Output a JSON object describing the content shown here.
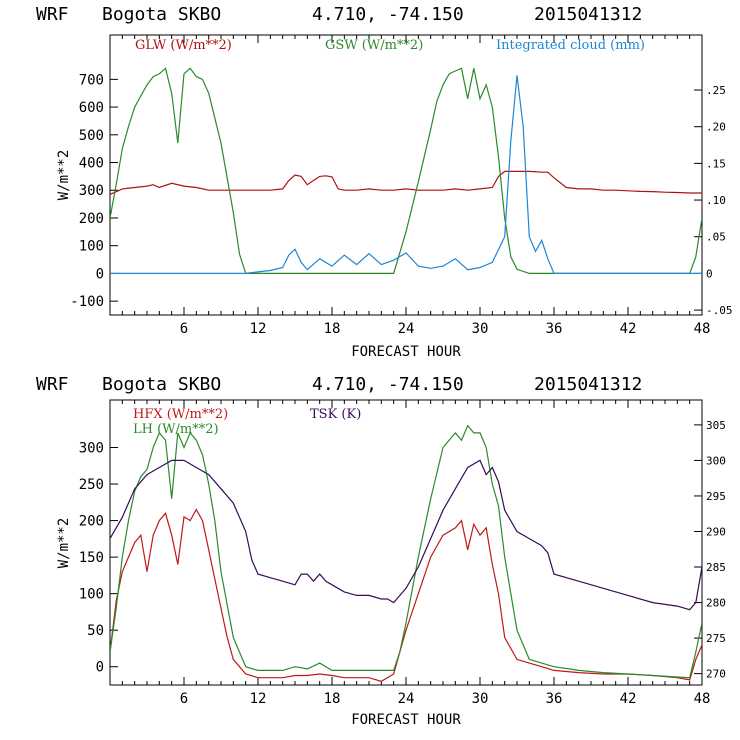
{
  "chart_data": [
    {
      "type": "line",
      "header": {
        "model": "WRF",
        "station": "Bogota SKBO",
        "coords": "4.710, -74.150",
        "run": "2015041312"
      },
      "xlabel": "FORECAST HOUR",
      "ylabel": "W/m**2",
      "xlim": [
        0,
        48
      ],
      "ylim": [
        -150,
        860
      ],
      "y2lim": [
        -0.0567,
        0.325
      ],
      "xticks": [
        6,
        12,
        18,
        24,
        30,
        36,
        42,
        48
      ],
      "yticks": [
        -100,
        0,
        100,
        200,
        300,
        400,
        500,
        600,
        700
      ],
      "ytick_labels": [
        "-100",
        "0",
        "100",
        "200",
        "300",
        "400",
        "500",
        "600",
        "700"
      ],
      "y2ticks": [
        -0.05,
        0,
        0.05,
        0.1,
        0.15,
        0.2,
        0.25
      ],
      "y2tick_labels": [
        "-.05",
        "0",
        ".05",
        ".10",
        ".15",
        ".20",
        ".25"
      ],
      "series": [
        {
          "name": "GLW (W/m**2)",
          "color": "#b01010",
          "axis": "left",
          "x": [
            0,
            1,
            2,
            3,
            3.5,
            4,
            5,
            6,
            7,
            8,
            9,
            10,
            11,
            12,
            13,
            14,
            14.5,
            15,
            15.5,
            16,
            16.5,
            17,
            17.5,
            18,
            18.5,
            19,
            20,
            21,
            22,
            23,
            24,
            25,
            26,
            27,
            28,
            29,
            30,
            31,
            31.5,
            32,
            33,
            34,
            35,
            35.5,
            36,
            37,
            38,
            39,
            40,
            41,
            42,
            43,
            44,
            45,
            46,
            47,
            48
          ],
          "values": [
            285,
            305,
            310,
            315,
            320,
            310,
            325,
            315,
            310,
            300,
            300,
            300,
            300,
            300,
            300,
            305,
            335,
            355,
            350,
            320,
            335,
            350,
            352,
            348,
            305,
            300,
            300,
            305,
            300,
            300,
            305,
            300,
            300,
            300,
            305,
            300,
            305,
            310,
            350,
            368,
            368,
            368,
            365,
            365,
            345,
            310,
            305,
            305,
            300,
            300,
            298,
            296,
            295,
            293,
            292,
            290,
            290
          ]
        },
        {
          "name": "GSW (W/m**2)",
          "color": "#2a8a2a",
          "axis": "left",
          "x": [
            0,
            0.5,
            1,
            1.5,
            2,
            2.5,
            3,
            3.5,
            4,
            4.5,
            5,
            5.5,
            6,
            6.5,
            7,
            7.5,
            8,
            9,
            10,
            10.5,
            11,
            12,
            23,
            24,
            25,
            26,
            26.5,
            27,
            27.5,
            28,
            28.5,
            29,
            29.5,
            30,
            30.5,
            31,
            31.5,
            32,
            32.5,
            33,
            34,
            35,
            36,
            47,
            47.5,
            48
          ],
          "values": [
            200,
            320,
            450,
            530,
            600,
            640,
            680,
            710,
            720,
            740,
            650,
            470,
            720,
            740,
            710,
            700,
            650,
            470,
            220,
            70,
            0,
            0,
            0,
            150,
            330,
            520,
            620,
            680,
            720,
            730,
            740,
            630,
            740,
            630,
            680,
            600,
            420,
            200,
            60,
            15,
            0,
            0,
            0,
            0,
            60,
            200
          ]
        },
        {
          "name": "Integrated cloud (mm)",
          "color": "#1c86d6",
          "axis": "right",
          "x": [
            0,
            11,
            12,
            13,
            14,
            14.5,
            15,
            15.5,
            16,
            17,
            18,
            19,
            20,
            21,
            22,
            23,
            24,
            25,
            26,
            27,
            28,
            29,
            30,
            31,
            32,
            32.5,
            33,
            33.5,
            34,
            34.5,
            35,
            35.5,
            36,
            48
          ],
          "values": [
            0,
            0,
            0.002,
            0.004,
            0.008,
            0.025,
            0.033,
            0.015,
            0.005,
            0.02,
            0.01,
            0.025,
            0.012,
            0.027,
            0.012,
            0.018,
            0.028,
            0.01,
            0.007,
            0.01,
            0.02,
            0.005,
            0.008,
            0.015,
            0.05,
            0.18,
            0.27,
            0.2,
            0.05,
            0.03,
            0.045,
            0.02,
            0,
            0
          ]
        }
      ]
    },
    {
      "type": "line",
      "header": {
        "model": "WRF",
        "station": "Bogota SKBO",
        "coords": "4.710, -74.150",
        "run": "2015041312"
      },
      "xlabel": "FORECAST HOUR",
      "ylabel": "W/m**2",
      "xlim": [
        0,
        48
      ],
      "ylim": [
        -25,
        365
      ],
      "y2lim": [
        268.4,
        308.5
      ],
      "xticks": [
        6,
        12,
        18,
        24,
        30,
        36,
        42,
        48
      ],
      "yticks": [
        0,
        50,
        100,
        150,
        200,
        250,
        300
      ],
      "ytick_labels": [
        "0",
        "50",
        "100",
        "150",
        "200",
        "250",
        "300"
      ],
      "y2ticks": [
        270,
        275,
        280,
        285,
        290,
        295,
        300,
        305
      ],
      "y2tick_labels": [
        "270",
        "275",
        "280",
        "285",
        "290",
        "295",
        "300",
        "305"
      ],
      "series": [
        {
          "name": "HFX (W/m**2)",
          "color": "#c01818",
          "axis": "left",
          "x": [
            0,
            0.5,
            1,
            1.5,
            2,
            2.5,
            3,
            3.5,
            4,
            4.5,
            5,
            5.5,
            6,
            6.5,
            7,
            7.5,
            8,
            8.5,
            9,
            9.5,
            10,
            11,
            12,
            13,
            14,
            15,
            16,
            17,
            18,
            19,
            20,
            21,
            22,
            23,
            23.5,
            24,
            25,
            26,
            27,
            28,
            28.5,
            29,
            29.5,
            30,
            30.5,
            31,
            31.5,
            32,
            33,
            34,
            35,
            36,
            38,
            40,
            42,
            44,
            46,
            47,
            47.5,
            48
          ],
          "values": [
            20,
            90,
            130,
            150,
            170,
            180,
            130,
            180,
            200,
            210,
            180,
            140,
            205,
            200,
            215,
            200,
            160,
            120,
            80,
            40,
            10,
            -10,
            -15,
            -15,
            -15,
            -12,
            -12,
            -10,
            -12,
            -15,
            -15,
            -15,
            -20,
            -10,
            20,
            50,
            100,
            150,
            180,
            190,
            200,
            160,
            195,
            180,
            190,
            140,
            100,
            40,
            10,
            5,
            0,
            -5,
            -8,
            -10,
            -10,
            -12,
            -15,
            -18,
            10,
            30
          ]
        },
        {
          "name": "LH (W/m**2)",
          "color": "#2a8a2a",
          "axis": "left",
          "x": [
            0,
            0.5,
            1,
            1.5,
            2,
            2.5,
            3,
            3.5,
            4,
            4.5,
            5,
            5.5,
            6,
            6.5,
            7,
            7.5,
            8,
            8.5,
            9,
            10,
            11,
            12,
            14,
            15,
            16,
            17,
            18,
            20,
            22,
            23,
            23.5,
            24,
            25,
            26,
            27,
            28,
            28.5,
            29,
            29.5,
            30,
            30.5,
            31,
            31.5,
            32,
            33,
            34,
            35,
            36,
            38,
            40,
            42,
            44,
            46,
            47,
            47.5,
            48
          ],
          "values": [
            20,
            80,
            150,
            200,
            240,
            260,
            270,
            300,
            320,
            310,
            230,
            320,
            300,
            320,
            310,
            290,
            250,
            200,
            130,
            40,
            0,
            -5,
            -5,
            0,
            -3,
            5,
            -5,
            -5,
            -5,
            -5,
            20,
            60,
            150,
            230,
            300,
            320,
            310,
            330,
            320,
            320,
            300,
            250,
            220,
            150,
            50,
            10,
            5,
            0,
            -5,
            -8,
            -10,
            -12,
            -14,
            -15,
            20,
            60
          ]
        },
        {
          "name": "TSK (K)",
          "color": "#3a0a5a",
          "axis": "right",
          "x": [
            0,
            1,
            2,
            3,
            4,
            5,
            6,
            7,
            8,
            9,
            10,
            11,
            11.5,
            12,
            13,
            14,
            15,
            15.5,
            16,
            16.5,
            17,
            17.5,
            18,
            19,
            20,
            21,
            22,
            22.5,
            23,
            24,
            25,
            26,
            27,
            28,
            29,
            30,
            30.5,
            31,
            31.5,
            32,
            33,
            34,
            35,
            35.5,
            36,
            38,
            40,
            42,
            44,
            46,
            47,
            47.5,
            48
          ],
          "values": [
            289,
            292,
            296,
            298,
            299,
            300,
            300,
            299,
            298,
            296,
            294,
            290,
            286,
            284,
            283.5,
            283,
            282.5,
            284,
            284,
            283,
            284,
            283,
            282.5,
            281.5,
            281,
            281,
            280.5,
            280.5,
            280,
            282,
            285,
            289,
            293,
            296,
            299,
            300,
            298,
            299,
            297,
            293,
            290,
            289,
            288,
            287,
            284,
            283,
            282,
            281,
            280,
            279.5,
            279,
            280,
            285
          ]
        }
      ]
    }
  ]
}
